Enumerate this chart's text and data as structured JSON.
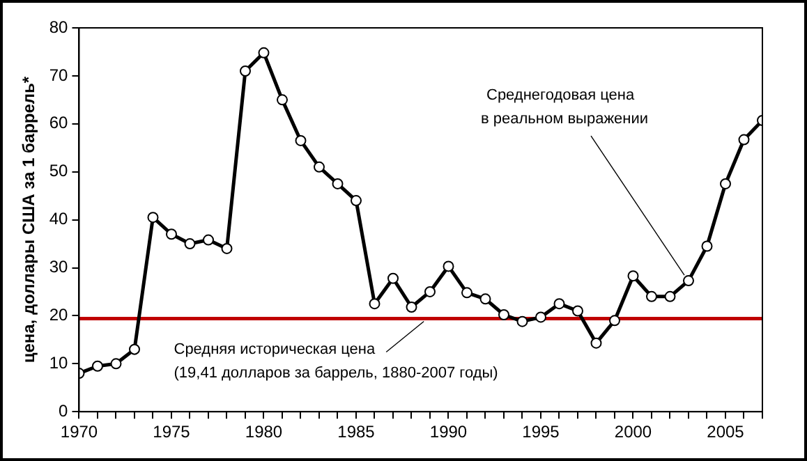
{
  "chart_data": {
    "type": "line",
    "ylabel": "цена, доллары США за 1 баррель*",
    "x": [
      1970,
      1971,
      1972,
      1973,
      1974,
      1975,
      1976,
      1977,
      1978,
      1979,
      1980,
      1981,
      1982,
      1983,
      1984,
      1985,
      1986,
      1987,
      1988,
      1989,
      1990,
      1991,
      1992,
      1993,
      1994,
      1995,
      1996,
      1997,
      1998,
      1999,
      2000,
      2001,
      2002,
      2003,
      2004,
      2005,
      2006,
      2007
    ],
    "series": [
      {
        "color": "#000000",
        "values": [
          8,
          9.5,
          10,
          13,
          40.5,
          37,
          35,
          35.8,
          34,
          71,
          74.8,
          65,
          56.5,
          51,
          47.5,
          44,
          22.5,
          27.8,
          21.8,
          25,
          30.3,
          24.8,
          23.5,
          20.2,
          18.8,
          19.7,
          22.5,
          21,
          14.3,
          19,
          28.3,
          24,
          24,
          27.3,
          34.5,
          47.5,
          56.7,
          60.7
        ]
      }
    ],
    "xlim": [
      1970,
      2007
    ],
    "xticks": [
      1970,
      {
        "value": 1971,
        "label": null
      },
      {
        "value": 1972,
        "label": null
      },
      {
        "value": 1973,
        "label": null
      },
      {
        "value": 1974,
        "label": null
      },
      1975,
      {
        "value": 1976,
        "label": null
      },
      {
        "value": 1977,
        "label": null
      },
      {
        "value": 1978,
        "label": null
      },
      {
        "value": 1979,
        "label": null
      },
      1980,
      {
        "value": 1981,
        "label": null
      },
      {
        "value": 1982,
        "label": null
      },
      {
        "value": 1983,
        "label": null
      },
      {
        "value": 1984,
        "label": null
      },
      1985,
      {
        "value": 1986,
        "label": null
      },
      {
        "value": 1987,
        "label": null
      },
      {
        "value": 1988,
        "label": null
      },
      {
        "value": 1989,
        "label": null
      },
      1990,
      {
        "value": 1991,
        "label": null
      },
      {
        "value": 1992,
        "label": null
      },
      {
        "value": 1993,
        "label": null
      },
      {
        "value": 1994,
        "label": null
      },
      1995,
      {
        "value": 1996,
        "label": null
      },
      {
        "value": 1997,
        "label": null
      },
      {
        "value": 1998,
        "label": null
      },
      {
        "value": 1999,
        "label": null
      },
      2000,
      {
        "value": 2001,
        "label": null
      },
      {
        "value": 2002,
        "label": null
      },
      {
        "value": 2003,
        "label": null
      },
      {
        "value": 2004,
        "label": null
      },
      2005,
      {
        "value": 2006,
        "label": null
      },
      {
        "value": 2007,
        "label": null
      }
    ],
    "ylim": [
      0,
      80
    ],
    "yticks": [
      0,
      10,
      20,
      30,
      40,
      50,
      60,
      70,
      80
    ],
    "ref_lines": [
      {
        "axis": "y",
        "value": 19.41,
        "color": "#c00000",
        "label": "Средняя историческая цена\n(19,41 долларов за баррель, 1880-2007 годы)"
      }
    ],
    "annotations": [
      {
        "text": "Среднегодовая цена\nв реальном выражении",
        "x": 2003,
        "y": 27.3
      }
    ],
    "marker": "circle",
    "line_style": "solid",
    "grid": false,
    "legend": false
  }
}
